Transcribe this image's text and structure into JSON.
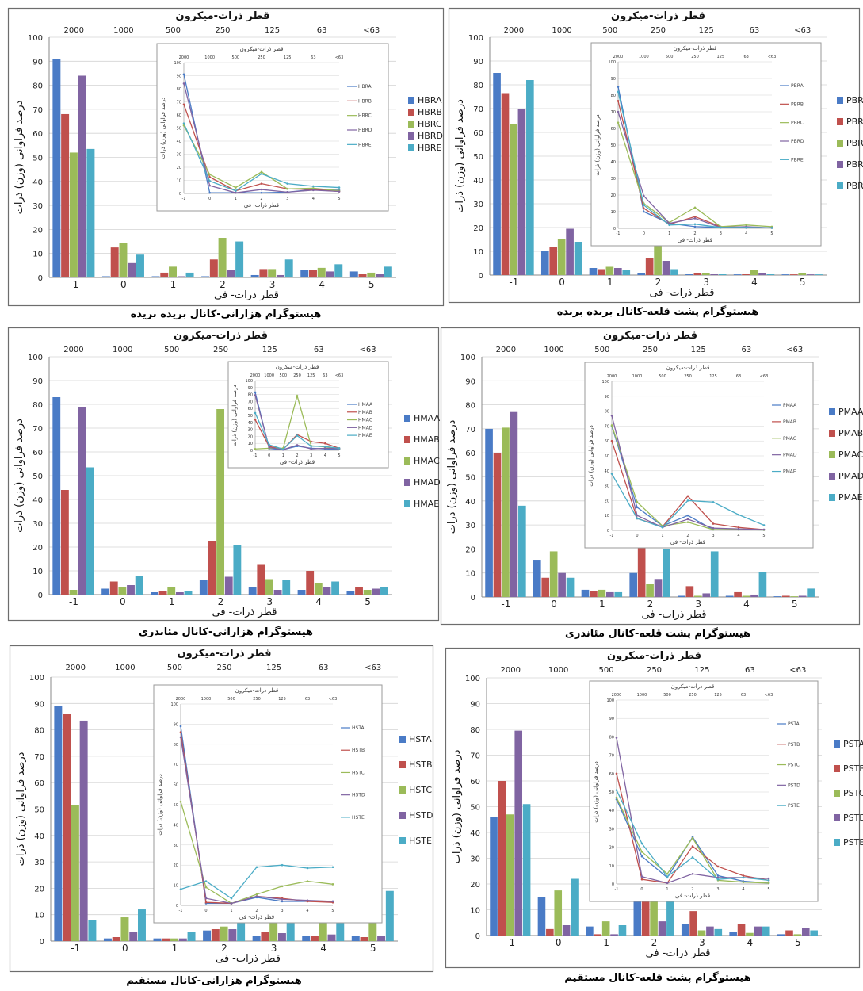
{
  "colors": [
    "#4a7bc6",
    "#c0504d",
    "#9bbb59",
    "#8064a2",
    "#4bacc6"
  ],
  "chart_data": [
    {
      "id": "hbr",
      "type": "bar",
      "caption": "هیستوگرام هزارانی-کانال بریده بریده",
      "top_title": "قطر ذرات-میکرون",
      "xlabel": "قطر ذرات- فی",
      "ylabel": "درصد فراوانی (وزن) ذرات",
      "inset_top_title": "قطر ذرات-میکرون",
      "inset_xlabel": "قطر ذرات- فی",
      "inset_ylabel": "درصد فراوانی (وزن) ذرات",
      "categories": [
        "-1",
        "0",
        "1",
        "2",
        "3",
        "4",
        "5"
      ],
      "top_ticks": [
        "2000",
        "1000",
        "500",
        "250",
        "125",
        "63",
        "<63"
      ],
      "y_ticks": [
        "0",
        "10",
        "20",
        "30",
        "40",
        "50",
        "60",
        "70",
        "80",
        "90",
        "100"
      ],
      "ylim": [
        0,
        100
      ],
      "legend_position": "right",
      "series": [
        {
          "name": "HBRA",
          "values": [
            91,
            0.5,
            0.5,
            0.5,
            1,
            3,
            2.5
          ]
        },
        {
          "name": "HBRB",
          "values": [
            68,
            12.5,
            2,
            7.5,
            3.5,
            3,
            1.5
          ]
        },
        {
          "name": "HBRC",
          "values": [
            52,
            14.5,
            4.5,
            16.5,
            3.5,
            4,
            2
          ]
        },
        {
          "name": "HBRD",
          "values": [
            84,
            6,
            0.5,
            3,
            1,
            2.5,
            1.5
          ]
        },
        {
          "name": "HBRE",
          "values": [
            53.5,
            9.5,
            2,
            15,
            7.5,
            5.5,
            4.5
          ]
        }
      ]
    },
    {
      "id": "pbr",
      "type": "bar",
      "caption": "هیستوگرام پشت قلعه-کانال بریده بریده",
      "top_title": "قطر ذرات-میکرون",
      "xlabel": "قطر ذرات- فی",
      "ylabel": "درصد فراوانی (وزن) ذرات",
      "inset_top_title": "قطر ذرات-میکرون",
      "inset_xlabel": "قطر ذرات- فی",
      "inset_ylabel": "درصد فراوانی (وزن) ذرات",
      "categories": [
        "-1",
        "0",
        "1",
        "2",
        "3",
        "4",
        "5"
      ],
      "top_ticks": [
        "2000",
        "1000",
        "500",
        "250",
        "125",
        "63",
        "<63"
      ],
      "y_ticks": [
        "0",
        "10",
        "20",
        "30",
        "40",
        "50",
        "60",
        "70",
        "80",
        "90",
        "100"
      ],
      "ylim": [
        0,
        100
      ],
      "legend_position": "right",
      "series": [
        {
          "name": "PBRA",
          "values": [
            85,
            10,
            3,
            1,
            0.5,
            0.3,
            0.3
          ]
        },
        {
          "name": "PBRB",
          "values": [
            76.5,
            12,
            2.5,
            7,
            1,
            0.5,
            0.3
          ]
        },
        {
          "name": "PBRC",
          "values": [
            63.5,
            15,
            3.5,
            12.5,
            1,
            2,
            1
          ]
        },
        {
          "name": "PBRD",
          "values": [
            70,
            19.5,
            3,
            6,
            0.5,
            1,
            0.3
          ]
        },
        {
          "name": "PBRE",
          "values": [
            82,
            14,
            2,
            2.5,
            0.5,
            0.5,
            0.3
          ]
        }
      ]
    },
    {
      "id": "hma",
      "type": "bar",
      "caption": "هیستوگرام هزارانی-کانال مئاندری",
      "top_title": "قطر ذرات-میکرون",
      "xlabel": "قطر ذرات- فی",
      "ylabel": "درصد فراوانی (وزن) ذرات",
      "inset_top_title": "قطر ذرات-میکرون",
      "inset_xlabel": "قطر ذرات- فی",
      "inset_ylabel": "درصد فراوانی (وزن) ذرات",
      "categories": [
        "-1",
        "0",
        "1",
        "2",
        "3",
        "4",
        "5"
      ],
      "top_ticks": [
        "2000",
        "1000",
        "500",
        "250",
        "125",
        "63",
        "<63"
      ],
      "y_ticks": [
        "0",
        "10",
        "20",
        "30",
        "40",
        "50",
        "60",
        "70",
        "80",
        "90",
        "100"
      ],
      "ylim": [
        0,
        100
      ],
      "legend_position": "right",
      "series": [
        {
          "name": "HMAA",
          "values": [
            83,
            2.5,
            1,
            6,
            3,
            2,
            1.5
          ]
        },
        {
          "name": "HMAB",
          "values": [
            44,
            5.5,
            1.5,
            22.5,
            12.5,
            10,
            3
          ]
        },
        {
          "name": "HMAC",
          "values": [
            2,
            3,
            3,
            78,
            6.5,
            5,
            2
          ]
        },
        {
          "name": "HMAD",
          "values": [
            79,
            4,
            1,
            7.5,
            2,
            3,
            2.5
          ]
        },
        {
          "name": "HMAE",
          "values": [
            53.5,
            8,
            1.5,
            21,
            6,
            5.5,
            3
          ]
        }
      ]
    },
    {
      "id": "pma",
      "type": "bar",
      "caption": "هیستوگرام پشت قلعه-کانال مئاندری",
      "top_title": "قطر ذرات-میکرون",
      "xlabel": "قطر ذرات- فی",
      "ylabel": "درصد فراوانی (وزن) ذرات",
      "inset_top_title": "قطر ذرات-میکرون",
      "inset_xlabel": "قطر ذرات- فی",
      "inset_ylabel": "درصد فراوانی (وزن) ذرات",
      "categories": [
        "-1",
        "0",
        "1",
        "2",
        "3",
        "4",
        "5"
      ],
      "top_ticks": [
        "2000",
        "1000",
        "500",
        "250",
        "125",
        "63",
        "<63"
      ],
      "y_ticks": [
        "0",
        "10",
        "20",
        "30",
        "40",
        "50",
        "60",
        "70",
        "80",
        "90",
        "100"
      ],
      "ylim": [
        0,
        100
      ],
      "legend_position": "right",
      "series": [
        {
          "name": "PMAA",
          "values": [
            70,
            15.5,
            3,
            10,
            0.5,
            0.5,
            0.3
          ]
        },
        {
          "name": "PMAB",
          "values": [
            60,
            8,
            2.5,
            23,
            4.5,
            2,
            0.5
          ]
        },
        {
          "name": "PMAC",
          "values": [
            70.5,
            19,
            3,
            5.5,
            0.5,
            0.5,
            0.3
          ]
        },
        {
          "name": "PMAD",
          "values": [
            77,
            10,
            2,
            7.5,
            1.5,
            1,
            0.5
          ]
        },
        {
          "name": "PMAE",
          "values": [
            38,
            8,
            2,
            20,
            19,
            10.5,
            3.5
          ]
        }
      ]
    },
    {
      "id": "hst",
      "type": "bar",
      "caption": "هیستوگرام هزارانی-کانال مستقیم",
      "top_title": "قطر ذرات-میکرون",
      "xlabel": "قطر ذرات- فی",
      "ylabel": "درصد فراوانی (وزن) ذرات",
      "inset_top_title": "قطر ذرات-میکرون",
      "inset_xlabel": "قطر ذرات- فی",
      "inset_ylabel": "درصد فراوانی (وزن) ذرات",
      "categories": [
        "-1",
        "0",
        "1",
        "2",
        "3",
        "4",
        "5"
      ],
      "top_ticks": [
        "2000",
        "1000",
        "500",
        "250",
        "125",
        "63",
        "<63"
      ],
      "y_ticks": [
        "0",
        "10",
        "20",
        "30",
        "40",
        "50",
        "60",
        "70",
        "80",
        "90",
        "100"
      ],
      "ylim": [
        0,
        100
      ],
      "legend_position": "right",
      "series": [
        {
          "name": "HSTA",
          "values": [
            89,
            1,
            1,
            4,
            2,
            2,
            2
          ]
        },
        {
          "name": "HSTB",
          "values": [
            86,
            1.5,
            1,
            4.5,
            3.5,
            2,
            1.5
          ]
        },
        {
          "name": "HSTC",
          "values": [
            51.5,
            9,
            1,
            5.5,
            9.5,
            12,
            10.5
          ]
        },
        {
          "name": "HSTD",
          "values": [
            83.5,
            3.5,
            1,
            4.5,
            3,
            2.5,
            2
          ]
        },
        {
          "name": "HSTE",
          "values": [
            8,
            12,
            3.5,
            19,
            20,
            18.5,
            19
          ]
        }
      ]
    },
    {
      "id": "pst",
      "type": "bar",
      "caption": "هیستوگرام پشت قلعه-کانال مستقیم",
      "top_title": "قطر ذرات-میکرون",
      "xlabel": "قطر ذرات- فی",
      "ylabel": "درصد فراوانی (وزن) ذرات",
      "inset_top_title": "قطر ذرات-میکرون",
      "inset_xlabel": "قطر ذرات- فی",
      "inset_ylabel": "درصد فراوانی (وزن) ذرات",
      "categories": [
        "-1",
        "0",
        "1",
        "2",
        "3",
        "4",
        "5"
      ],
      "top_ticks": [
        "2000",
        "1000",
        "500",
        "250",
        "125",
        "63",
        "<63"
      ],
      "y_ticks": [
        "0",
        "10",
        "20",
        "30",
        "40",
        "50",
        "60",
        "70",
        "80",
        "90",
        "100"
      ],
      "ylim": [
        0,
        100
      ],
      "legend_position": "right",
      "series": [
        {
          "name": "PSTA",
          "values": [
            46,
            15,
            3.5,
            25.5,
            4.5,
            1.5,
            0.5
          ]
        },
        {
          "name": "PSTB",
          "values": [
            60,
            2.5,
            0.5,
            20.5,
            9.5,
            4.5,
            2
          ]
        },
        {
          "name": "PSTC",
          "values": [
            47,
            17.5,
            5.5,
            25,
            2,
            1,
            0.5
          ]
        },
        {
          "name": "PSTD",
          "values": [
            79.5,
            4,
            0.5,
            5.5,
            3.5,
            3.5,
            3
          ]
        },
        {
          "name": "PSTE",
          "values": [
            51,
            22,
            4,
            14.5,
            2.5,
            3.5,
            2
          ]
        }
      ]
    }
  ]
}
